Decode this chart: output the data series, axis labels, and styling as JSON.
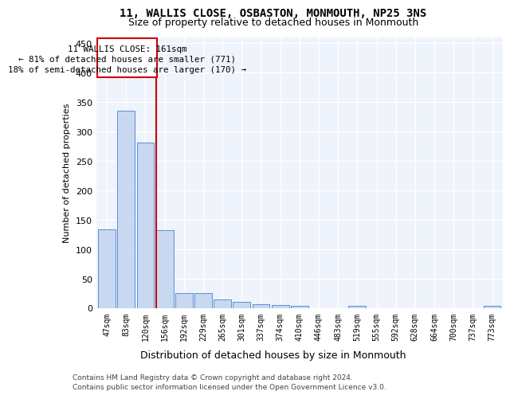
{
  "title": "11, WALLIS CLOSE, OSBASTON, MONMOUTH, NP25 3NS",
  "subtitle": "Size of property relative to detached houses in Monmouth",
  "xlabel": "Distribution of detached houses by size in Monmouth",
  "ylabel": "Number of detached properties",
  "bar_color": "#c8d8f0",
  "bar_edge_color": "#5b8dd9",
  "bg_color": "#eef3fc",
  "grid_color": "#ffffff",
  "annotation_box_color": "#cc0000",
  "vline_color": "#cc0000",
  "annotation_text_line1": "11 WALLIS CLOSE: 161sqm",
  "annotation_text_line2": "← 81% of detached houses are smaller (771)",
  "annotation_text_line3": "18% of semi-detached houses are larger (170) →",
  "categories": [
    "47sqm",
    "83sqm",
    "120sqm",
    "156sqm",
    "192sqm",
    "229sqm",
    "265sqm",
    "301sqm",
    "337sqm",
    "374sqm",
    "410sqm",
    "446sqm",
    "483sqm",
    "519sqm",
    "555sqm",
    "592sqm",
    "628sqm",
    "664sqm",
    "700sqm",
    "737sqm",
    "773sqm"
  ],
  "values": [
    134,
    335,
    281,
    132,
    26,
    26,
    15,
    11,
    7,
    5,
    4,
    0,
    0,
    4,
    0,
    0,
    0,
    0,
    0,
    0,
    4
  ],
  "ylim": [
    0,
    460
  ],
  "yticks": [
    0,
    50,
    100,
    150,
    200,
    250,
    300,
    350,
    400,
    450
  ],
  "vline_x": 3.0,
  "footer_line1": "Contains HM Land Registry data © Crown copyright and database right 2024.",
  "footer_line2": "Contains public sector information licensed under the Open Government Licence v3.0."
}
